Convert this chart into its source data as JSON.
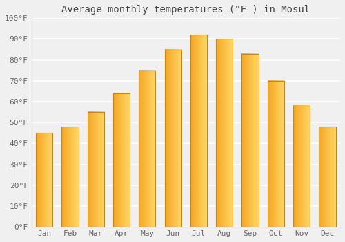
{
  "title": "Average monthly temperatures (°F ) in Mosul",
  "months": [
    "Jan",
    "Feb",
    "Mar",
    "Apr",
    "May",
    "Jun",
    "Jul",
    "Aug",
    "Sep",
    "Oct",
    "Nov",
    "Dec"
  ],
  "values": [
    45,
    48,
    55,
    64,
    75,
    85,
    92,
    90,
    83,
    70,
    58,
    48
  ],
  "bar_color_left": "#F5A623",
  "bar_color_right": "#FFD966",
  "bar_outline_color": "#CC8800",
  "ylim": [
    0,
    100
  ],
  "yticks": [
    0,
    10,
    20,
    30,
    40,
    50,
    60,
    70,
    80,
    90,
    100
  ],
  "ytick_labels": [
    "0°F",
    "10°F",
    "20°F",
    "30°F",
    "40°F",
    "50°F",
    "60°F",
    "70°F",
    "80°F",
    "90°F",
    "100°F"
  ],
  "background_color": "#f0f0f0",
  "grid_color": "#ffffff",
  "title_fontsize": 10,
  "tick_fontsize": 8,
  "tick_color": "#666666",
  "title_color": "#444444"
}
